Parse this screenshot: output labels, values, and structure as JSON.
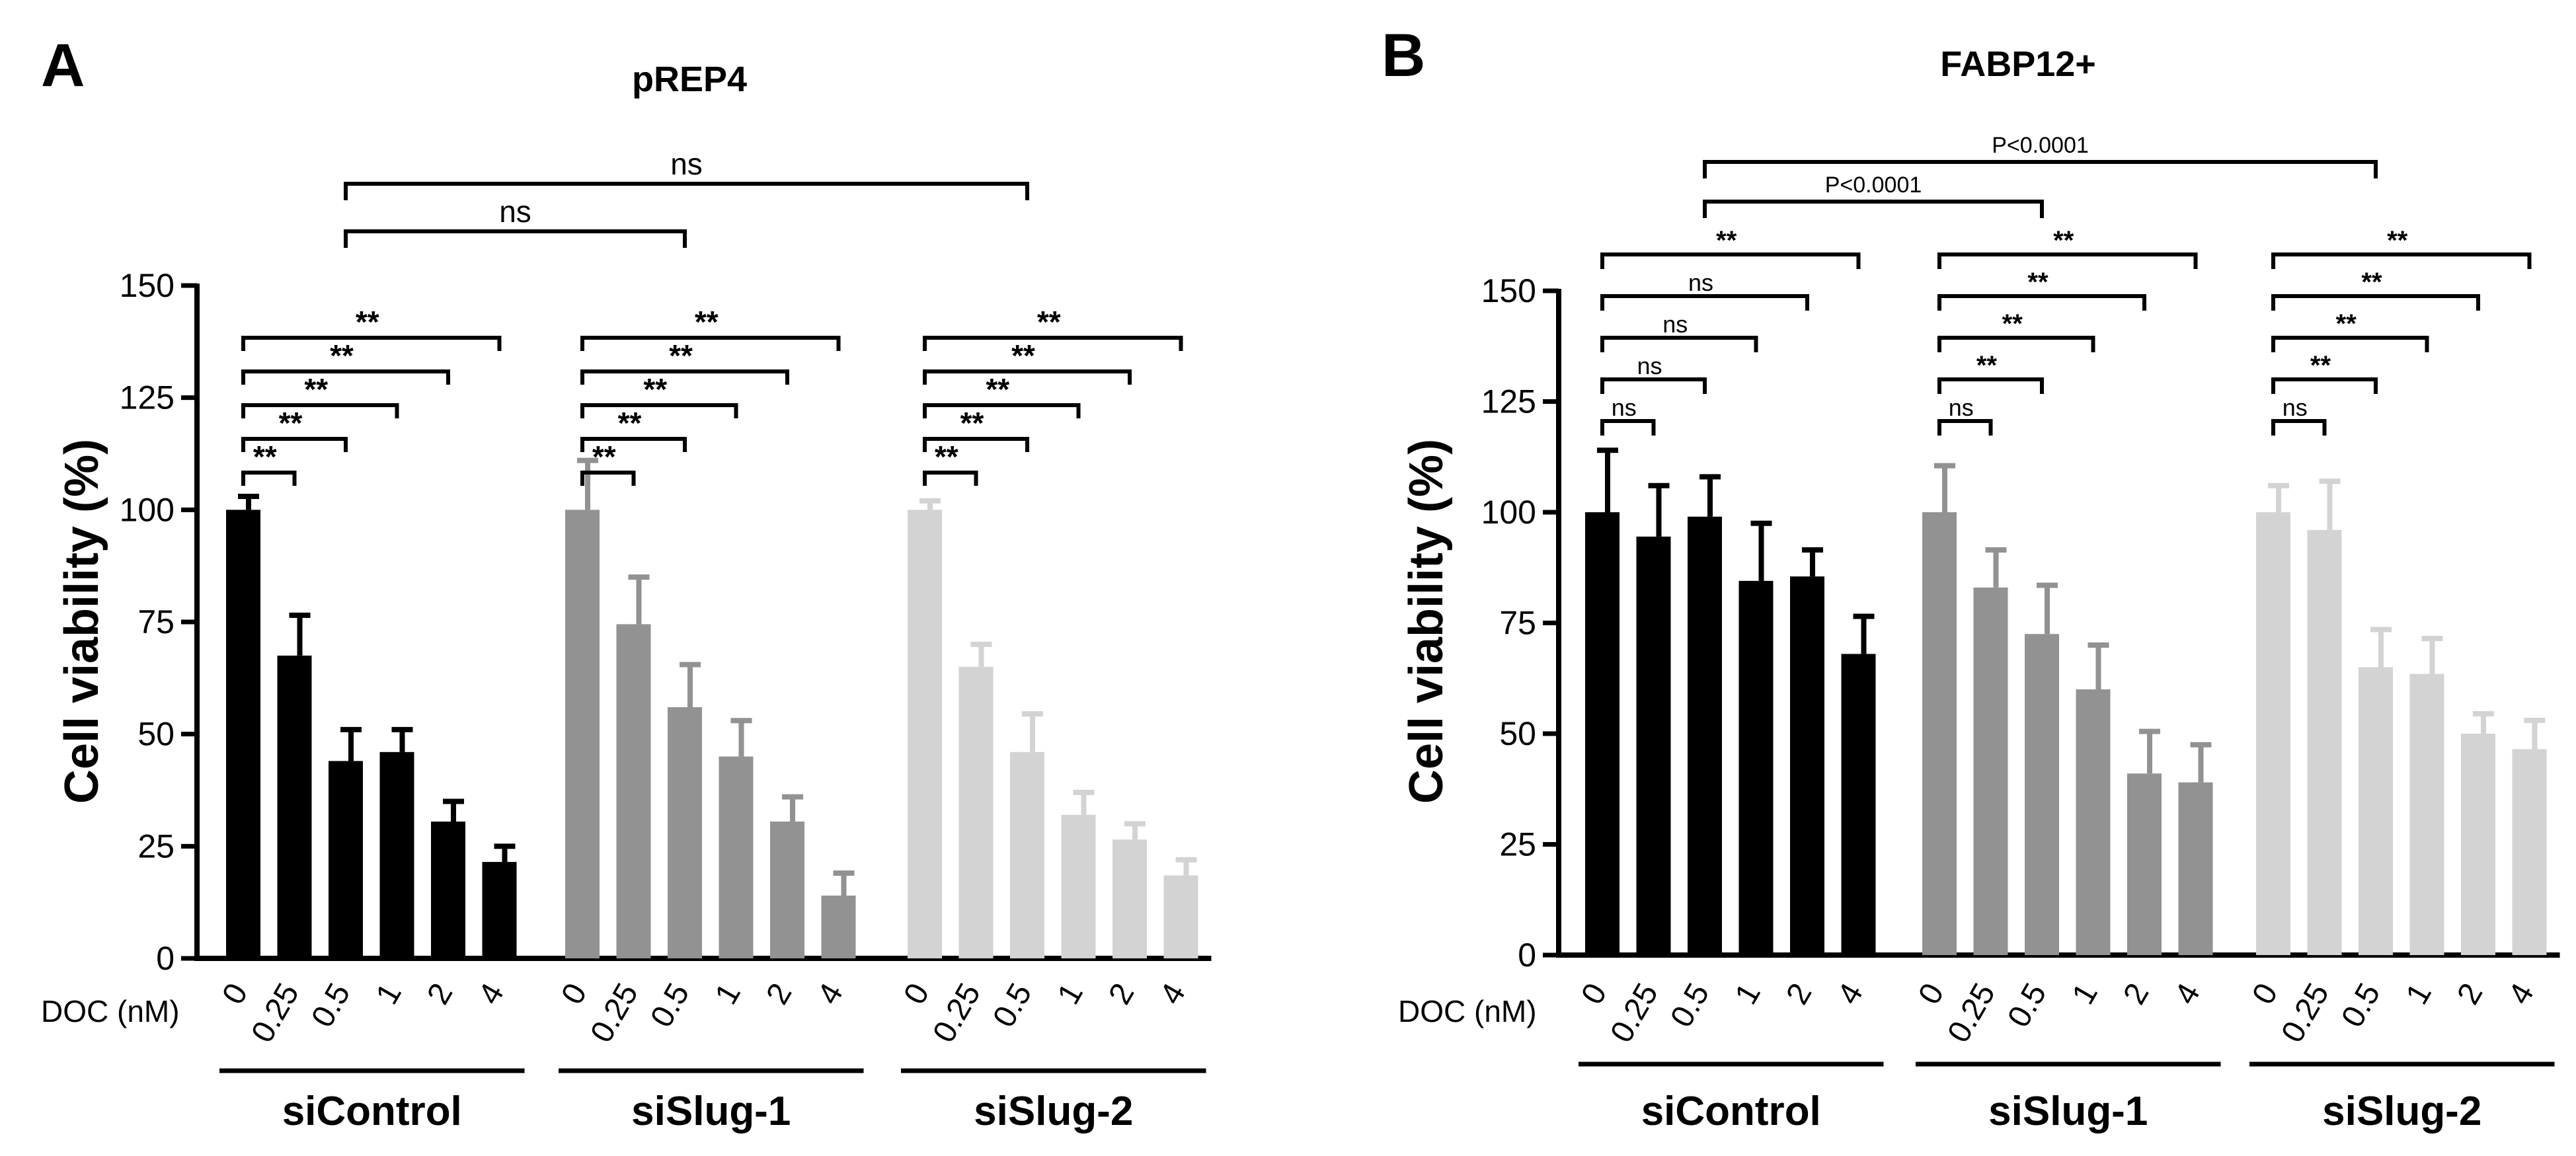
{
  "chart_data": [
    {
      "type": "bar",
      "panel_label": "A",
      "title": "pREP4",
      "ylabel": "Cell viability (%)",
      "xlabel": "DOC (nM)",
      "ylim": [
        0,
        150
      ],
      "yticks": [
        0,
        25,
        50,
        75,
        100,
        125,
        150
      ],
      "categories": [
        "0",
        "0.25",
        "0.5",
        "1",
        "2",
        "4"
      ],
      "series": [
        {
          "name": "siControl",
          "color": "#000000",
          "values": [
            100,
            67.5,
            44,
            46,
            30.5,
            21.5
          ],
          "errors": [
            3,
            9,
            7,
            5,
            4.5,
            3.5
          ],
          "brackets": [
            {
              "from": 0,
              "to": 1,
              "label": "**"
            },
            {
              "from": 0,
              "to": 2,
              "label": "**"
            },
            {
              "from": 0,
              "to": 3,
              "label": "**"
            },
            {
              "from": 0,
              "to": 4,
              "label": "**"
            },
            {
              "from": 0,
              "to": 5,
              "label": "**"
            }
          ]
        },
        {
          "name": "siSlug-1",
          "color": "#929292",
          "values": [
            100,
            74.5,
            56,
            45,
            30.5,
            14
          ],
          "errors": [
            11,
            10.5,
            9.5,
            8,
            5.5,
            5
          ],
          "brackets": [
            {
              "from": 0,
              "to": 1,
              "label": "**"
            },
            {
              "from": 0,
              "to": 2,
              "label": "**"
            },
            {
              "from": 0,
              "to": 3,
              "label": "**"
            },
            {
              "from": 0,
              "to": 4,
              "label": "**"
            },
            {
              "from": 0,
              "to": 5,
              "label": "**"
            }
          ]
        },
        {
          "name": "siSlug-2",
          "color": "#d3d3d3",
          "values": [
            100,
            65,
            46,
            32,
            26.5,
            18.5
          ],
          "errors": [
            2,
            5,
            8.5,
            5,
            3.5,
            3.5
          ],
          "brackets": [
            {
              "from": 0,
              "to": 1,
              "label": "**"
            },
            {
              "from": 0,
              "to": 2,
              "label": "**"
            },
            {
              "from": 0,
              "to": 3,
              "label": "**"
            },
            {
              "from": 0,
              "to": 4,
              "label": "**"
            },
            {
              "from": 0,
              "to": 5,
              "label": "**"
            }
          ]
        }
      ],
      "cross_brackets": [
        {
          "from_series": 0,
          "from_cat": 2,
          "to_series": 1,
          "to_cat": 2,
          "label": "ns"
        },
        {
          "from_series": 0,
          "from_cat": 2,
          "to_series": 2,
          "to_cat": 2,
          "label": "ns"
        }
      ]
    },
    {
      "type": "bar",
      "panel_label": "B",
      "title": "FABP12+",
      "ylabel": "Cell viability (%)",
      "xlabel": "DOC (nM)",
      "ylim": [
        0,
        150
      ],
      "yticks": [
        0,
        25,
        50,
        75,
        100,
        125,
        150
      ],
      "categories": [
        "0",
        "0.25",
        "0.5",
        "1",
        "2",
        "4"
      ],
      "series": [
        {
          "name": "siControl",
          "color": "#000000",
          "values": [
            100,
            94.5,
            99,
            84.5,
            85.5,
            68
          ],
          "errors": [
            14,
            11.5,
            9,
            13,
            6,
            8.5
          ],
          "brackets": [
            {
              "from": 0,
              "to": 1,
              "label": "ns"
            },
            {
              "from": 0,
              "to": 2,
              "label": "ns"
            },
            {
              "from": 0,
              "to": 3,
              "label": "ns"
            },
            {
              "from": 0,
              "to": 4,
              "label": "ns"
            },
            {
              "from": 0,
              "to": 5,
              "label": "**"
            }
          ]
        },
        {
          "name": "siSlug-1",
          "color": "#929292",
          "values": [
            100,
            83,
            72.5,
            60,
            41,
            39
          ],
          "errors": [
            10.5,
            8.5,
            11,
            10,
            9.5,
            8.5
          ],
          "brackets": [
            {
              "from": 0,
              "to": 1,
              "label": "ns"
            },
            {
              "from": 0,
              "to": 2,
              "label": "**"
            },
            {
              "from": 0,
              "to": 3,
              "label": "**"
            },
            {
              "from": 0,
              "to": 4,
              "label": "**"
            },
            {
              "from": 0,
              "to": 5,
              "label": "**"
            }
          ]
        },
        {
          "name": "siSlug-2",
          "color": "#d3d3d3",
          "values": [
            100,
            96,
            65,
            63.5,
            50,
            46.5
          ],
          "errors": [
            6,
            11,
            8.5,
            8,
            4.5,
            6.5
          ],
          "brackets": [
            {
              "from": 0,
              "to": 1,
              "label": "ns"
            },
            {
              "from": 0,
              "to": 2,
              "label": "**"
            },
            {
              "from": 0,
              "to": 3,
              "label": "**"
            },
            {
              "from": 0,
              "to": 4,
              "label": "**"
            },
            {
              "from": 0,
              "to": 5,
              "label": "**"
            }
          ]
        }
      ],
      "cross_brackets": [
        {
          "from_series": 0,
          "from_cat": 2,
          "to_series": 1,
          "to_cat": 2,
          "label": "P<0.0001"
        },
        {
          "from_series": 0,
          "from_cat": 2,
          "to_series": 2,
          "to_cat": 2,
          "label": "P<0.0001"
        }
      ]
    }
  ]
}
